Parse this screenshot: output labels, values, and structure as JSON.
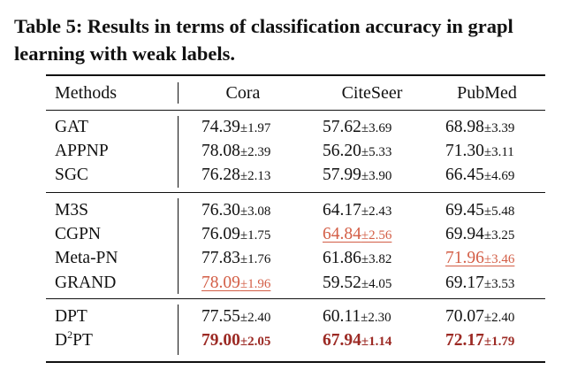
{
  "caption": {
    "line1": "Table 5: Results in terms of classification accuracy in grapl",
    "line2": "learning with weak labels."
  },
  "header": {
    "methods": "Methods",
    "col1": "Cora",
    "col2": "CiteSeer",
    "col3": "PubMed"
  },
  "groups": [
    {
      "rows": [
        {
          "method": "GAT",
          "cora": {
            "mean": "74.39",
            "std": "±1.97"
          },
          "citeseer": {
            "mean": "57.62",
            "std": "±3.69"
          },
          "pubmed": {
            "mean": "68.98",
            "std": "±3.39"
          }
        },
        {
          "method": "APPNP",
          "cora": {
            "mean": "78.08",
            "std": "±2.39"
          },
          "citeseer": {
            "mean": "56.20",
            "std": "±5.33"
          },
          "pubmed": {
            "mean": "71.30",
            "std": "±3.11"
          }
        },
        {
          "method": "SGC",
          "cora": {
            "mean": "76.28",
            "std": "±2.13"
          },
          "citeseer": {
            "mean": "57.99",
            "std": "±3.90"
          },
          "pubmed": {
            "mean": "66.45",
            "std": "±4.69"
          }
        }
      ]
    },
    {
      "rows": [
        {
          "method": "M3S",
          "cora": {
            "mean": "76.30",
            "std": "±3.08"
          },
          "citeseer": {
            "mean": "64.17",
            "std": "±2.43"
          },
          "pubmed": {
            "mean": "69.45",
            "std": "±5.48"
          }
        },
        {
          "method": "CGPN",
          "cora": {
            "mean": "76.09",
            "std": "±1.75"
          },
          "citeseer": {
            "mean": "64.84",
            "std": "±2.56"
          },
          "pubmed": {
            "mean": "69.94",
            "std": "±3.25"
          }
        },
        {
          "method": "Meta-PN",
          "cora": {
            "mean": "77.83",
            "std": "±1.76"
          },
          "citeseer": {
            "mean": "61.86",
            "std": "±3.82"
          },
          "pubmed": {
            "mean": "71.96",
            "std": "±3.46"
          }
        },
        {
          "method": "GRAND",
          "cora": {
            "mean": "78.09",
            "std": "±1.96"
          },
          "citeseer": {
            "mean": "59.52",
            "std": "±4.05"
          },
          "pubmed": {
            "mean": "69.17",
            "std": "±3.53"
          }
        }
      ]
    },
    {
      "rows": [
        {
          "method": "DPT",
          "cora": {
            "mean": "77.55",
            "std": "±2.40"
          },
          "citeseer": {
            "mean": "60.11",
            "std": "±2.30"
          },
          "pubmed": {
            "mean": "70.07",
            "std": "±2.40"
          }
        },
        {
          "method_base": "D",
          "method_sup": "2",
          "method_rest": "PT",
          "cora": {
            "mean": "79.00",
            "std": "±2.05"
          },
          "citeseer": {
            "mean": "67.94",
            "std": "±1.14"
          },
          "pubmed": {
            "mean": "72.17",
            "std": "±1.79"
          }
        }
      ]
    }
  ],
  "highlight_colors": {
    "second_best": "#d35e46",
    "best": "#9c2a24"
  }
}
